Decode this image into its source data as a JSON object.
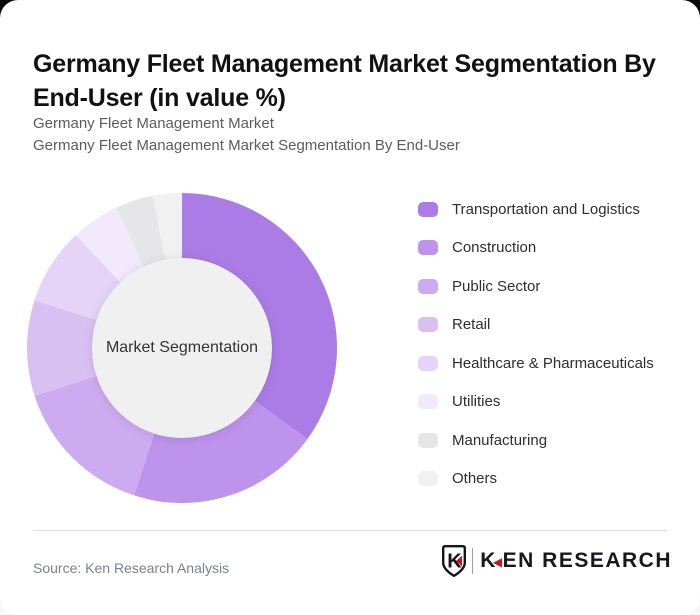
{
  "header": {
    "title_lines": [
      "Germany Fleet Management Market Segmentation By",
      "End-User (in value %)"
    ],
    "subtitle_lines": [
      "Germany Fleet Management Market",
      "Germany Fleet Management Market Segmentation By End-User"
    ]
  },
  "chart_data": {
    "type": "pie",
    "variant": "donut",
    "title": "Germany Fleet Management Market Segmentation By End-User (in value %)",
    "center_label": "Market Segmentation",
    "unit": "value %",
    "categories": [
      "Transportation and Logistics",
      "Construction",
      "Public Sector",
      "Retail",
      "Healthcare & Pharmaceuticals",
      "Utilities",
      "Manufacturing",
      "Others"
    ],
    "values": [
      35,
      20,
      15,
      10,
      8,
      5,
      4,
      3
    ],
    "colors": [
      "#ac7ce6",
      "#bd93eb",
      "#cdabf0",
      "#d9c0f3",
      "#e5d4f7",
      "#f2eafc",
      "#e6e6e8",
      "#f1f1f1"
    ],
    "start_angle_deg": 0,
    "direction": "clockwise",
    "legend_position": "right",
    "inner_hole_color": "#f0f0f0"
  },
  "footer": {
    "source": "Source: Ken Research Analysis",
    "logo": {
      "emblem_letter": "K",
      "wordmark_first_letter": "K",
      "wordmark_rest": "EN RESEARCH",
      "accent_color": "#c4161c"
    }
  }
}
